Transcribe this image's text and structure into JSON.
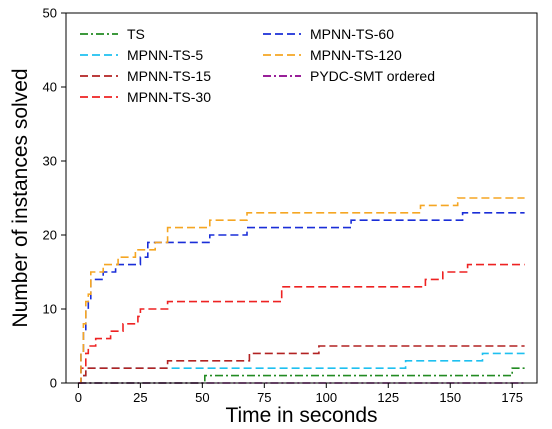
{
  "chart_data": {
    "type": "line",
    "xlabel": "Time in seconds",
    "ylabel": "Number of instances solved",
    "xlim": [
      -5,
      185
    ],
    "ylim": [
      0,
      50
    ],
    "xticks": [
      0,
      25,
      50,
      75,
      100,
      125,
      150,
      175
    ],
    "yticks": [
      0,
      10,
      20,
      30,
      40,
      50
    ],
    "grid": false,
    "legend_position": "top-left",
    "series": [
      {
        "name": "TS",
        "color": "#228B22",
        "dash": "dashdot",
        "x": [
          0,
          1,
          51,
          173,
          175,
          180
        ],
        "y": [
          0,
          0,
          1,
          1,
          2,
          2
        ]
      },
      {
        "name": "MPNN-TS-5",
        "color": "#1ec0f0",
        "dash": "dashed",
        "x": [
          0,
          1,
          2,
          3,
          35,
          132,
          163,
          180
        ],
        "y": [
          0,
          1,
          1,
          2,
          2,
          3,
          4,
          4
        ]
      },
      {
        "name": "MPNN-TS-15",
        "color": "#b22222",
        "dash": "dashed",
        "x": [
          0,
          1,
          3,
          36,
          69,
          97,
          180
        ],
        "y": [
          0,
          1,
          2,
          3,
          4,
          5,
          5
        ]
      },
      {
        "name": "MPNN-TS-30",
        "color": "#ee2222",
        "dash": "dashed",
        "x": [
          0,
          1,
          3,
          4,
          5,
          7,
          13,
          18,
          24,
          25,
          36,
          82,
          140,
          147,
          157,
          180
        ],
        "y": [
          0,
          2,
          4,
          5,
          5,
          6,
          7,
          8,
          9,
          10,
          11,
          13,
          14,
          15,
          16,
          16
        ]
      },
      {
        "name": "MPNN-TS-60",
        "color": "#1a2ed8",
        "dash": "dashed",
        "x": [
          0,
          1,
          2,
          3,
          4,
          5,
          8,
          10,
          15,
          25,
          28,
          37,
          53,
          68,
          110,
          155,
          180
        ],
        "y": [
          0,
          4,
          7,
          10,
          11,
          14,
          14,
          15,
          16,
          17,
          19,
          19,
          20,
          21,
          22,
          23,
          23
        ]
      },
      {
        "name": "MPNN-TS-120",
        "color": "#f5a623",
        "dash": "dashed",
        "x": [
          0,
          1,
          2,
          3,
          4,
          5,
          8,
          10,
          16,
          23,
          31,
          36,
          53,
          68,
          125,
          138,
          153,
          180
        ],
        "y": [
          0,
          4,
          8,
          11,
          12,
          15,
          15,
          16,
          17,
          18,
          19,
          21,
          22,
          23,
          23,
          24,
          25,
          25
        ]
      },
      {
        "name": "PYDC-SMT ordered",
        "color": "#8b008b",
        "dash": "dashdot",
        "x": [
          0,
          180
        ],
        "y": [
          0,
          0
        ]
      }
    ]
  }
}
